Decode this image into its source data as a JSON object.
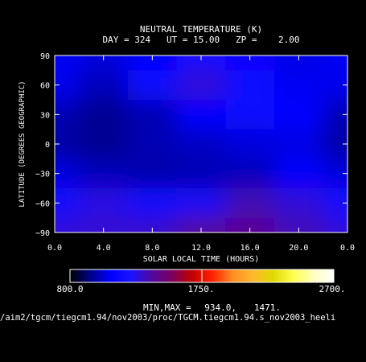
{
  "chart_data": {
    "type": "heatmap",
    "title": "NEUTRAL TEMPERATURE (K)",
    "subtitle": "DAY = 324   UT = 15.00   ZP =    2.00",
    "xlabel": "SOLAR LOCAL TIME (HOURS)",
    "ylabel": "LATITUDE (DEGREES GEOGRAPHIC)",
    "xlim": [
      0,
      24
    ],
    "ylim": [
      -90,
      90
    ],
    "x_tick_labels": [
      "0.0",
      "4.0",
      "8.0",
      "12.0",
      "16.0",
      "20.0",
      "0.0"
    ],
    "y_ticks": [
      90,
      60,
      30,
      0,
      -30,
      -60,
      -90
    ],
    "y_tick_labels": [
      "90",
      "60",
      "30",
      "0",
      "−30",
      "−60",
      "−90"
    ],
    "x_hours": [
      0,
      4,
      8,
      12,
      16,
      20,
      24
    ],
    "latitudes": [
      90,
      60,
      30,
      0,
      -30,
      -60,
      -90
    ],
    "values": [
      [
        1080,
        1050,
        1120,
        1200,
        1140,
        1060,
        1080
      ],
      [
        1070,
        1010,
        1180,
        1300,
        1150,
        1080,
        1070
      ],
      [
        1000,
        960,
        1000,
        1100,
        1150,
        1100,
        1000
      ],
      [
        980,
        960,
        1000,
        1020,
        1050,
        1060,
        980
      ],
      [
        1050,
        1010,
        990,
        1000,
        1010,
        1090,
        1050
      ],
      [
        1200,
        1280,
        1200,
        1250,
        1350,
        1300,
        1200
      ],
      [
        1300,
        1310,
        1320,
        1400,
        1420,
        1350,
        1300
      ]
    ],
    "colorbar": {
      "min": 800,
      "mid": 1750,
      "max": 2700,
      "labels": [
        "800.0",
        "1750.",
        "2700."
      ],
      "stops": [
        "#000000",
        "#000088",
        "#0000ff",
        "#1b12ff",
        "#5008a0",
        "#7a0060",
        "#c00000",
        "#ff2000",
        "#ff8c20",
        "#ffb830",
        "#e0d800",
        "#ffff50",
        "#ffffc0",
        "#ffffff"
      ]
    },
    "minmax_label": "MIN,MAX =",
    "min_value": "934.0,",
    "max_value": "1471.",
    "grid": false
  },
  "footer": {
    "path": "/aim2/tgcm/tiegcm1.94/nov2003/proc/TGCM.tiegcm1.94.s_nov2003_heeli"
  }
}
